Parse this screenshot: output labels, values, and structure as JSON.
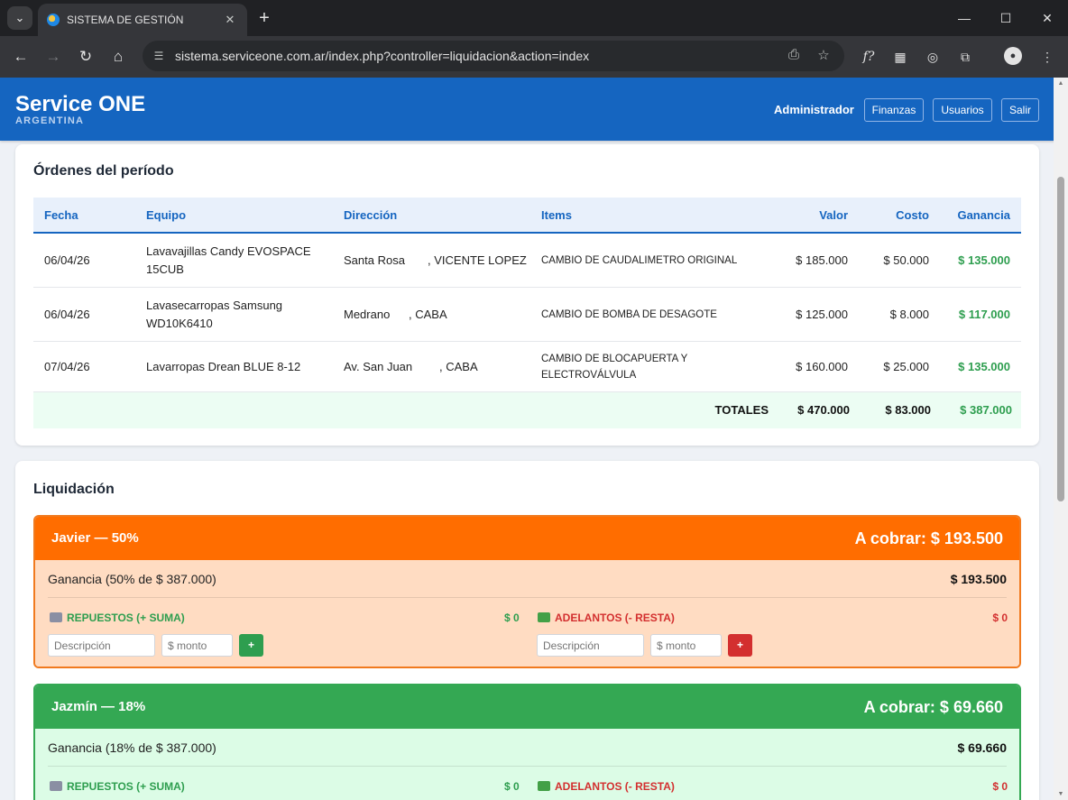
{
  "browser": {
    "tab_title": "SISTEMA DE GESTIÓN",
    "url": "sistema.serviceone.com.ar/index.php?controller=liquidacion&action=index",
    "window_controls": {
      "minimize": "—",
      "maximize": "☐",
      "close": "✕"
    }
  },
  "header": {
    "brand": "Service ONE",
    "brand_sub": "ARGENTINA",
    "role": "Administrador",
    "buttons": [
      "Finanzas",
      "Usuarios",
      "Salir"
    ]
  },
  "orders": {
    "title": "Órdenes del período",
    "columns": [
      "Fecha",
      "Equipo",
      "Dirección",
      "Items",
      "Valor",
      "Costo",
      "Ganancia"
    ],
    "rows": [
      {
        "fecha": "06/04/26",
        "equipo": "Lavavajillas Candy EVOSPACE 15CUB",
        "dir_street": "Santa Rosa",
        "dir_city": ", VICENTE LOPEZ",
        "items": "CAMBIO DE CAUDALIMETRO ORIGINAL",
        "valor": "$ 185.000",
        "costo": "$ 50.000",
        "ganancia": "$ 135.000"
      },
      {
        "fecha": "06/04/26",
        "equipo": "Lavasecarropas Samsung WD10K6410",
        "dir_street": "Medrano",
        "dir_city": ", CABA",
        "items": "CAMBIO DE BOMBA DE DESAGOTE",
        "valor": "$ 125.000",
        "costo": "$ 8.000",
        "ganancia": "$ 117.000"
      },
      {
        "fecha": "07/04/26",
        "equipo": "Lavarropas Drean BLUE 8-12",
        "dir_street": "Av. San Juan",
        "dir_city": ", CABA",
        "items": "CAMBIO DE BLOCAPUERTA Y ELECTROVÁLVULA",
        "valor": "$ 160.000",
        "costo": "$ 25.000",
        "ganancia": "$ 135.000"
      }
    ],
    "totals": {
      "label": "TOTALES",
      "valor": "$ 470.000",
      "costo": "$ 83.000",
      "ganancia": "$ 387.000"
    }
  },
  "liquidacion": {
    "title": "Liquidación",
    "parties": [
      {
        "name": "Javier — 50%",
        "total": "A cobrar: $ 193.500",
        "gain_label": "Ganancia (50% de $ 387.000)",
        "gain_value": "$ 193.500",
        "head_color": "#ff6d00",
        "body_color": "#ffdcc2",
        "border_color": "#f07a1f",
        "repuestos_label": "REPUESTOS (+ SUMA)",
        "repuestos_value": "$ 0",
        "adelantos_label": "ADELANTOS (- RESTA)",
        "adelantos_value": "$ 0",
        "desc_placeholder": "Descripción",
        "monto_placeholder": "$ monto",
        "add_label": "+"
      },
      {
        "name": "Jazmín — 18%",
        "total": "A cobrar: $ 69.660",
        "gain_label": "Ganancia (18% de $ 387.000)",
        "gain_value": "$ 69.660",
        "head_color": "#34a853",
        "body_color": "#dcfce6",
        "border_color": "#34a853",
        "repuestos_label": "REPUESTOS (+ SUMA)",
        "repuestos_value": "$ 0",
        "adelantos_label": "ADELANTOS (- RESTA)",
        "adelantos_value": "$ 0"
      }
    ]
  }
}
